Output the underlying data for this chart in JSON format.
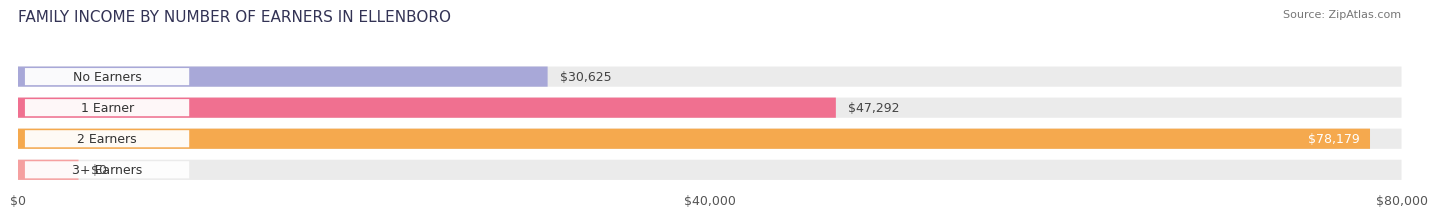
{
  "title": "FAMILY INCOME BY NUMBER OF EARNERS IN ELLENBORO",
  "source": "Source: ZipAtlas.com",
  "categories": [
    "No Earners",
    "1 Earner",
    "2 Earners",
    "3+ Earners"
  ],
  "values": [
    30625,
    47292,
    78179,
    0
  ],
  "bar_colors": [
    "#a8a8d8",
    "#f07090",
    "#f5a94e",
    "#f5a0a0"
  ],
  "value_labels": [
    "$30,625",
    "$47,292",
    "$78,179",
    "$0"
  ],
  "value_label_colors": [
    "#333333",
    "#333333",
    "#ffffff",
    "#333333"
  ],
  "xlim": [
    0,
    80000
  ],
  "xtick_labels": [
    "$0",
    "$40,000",
    "$80,000"
  ],
  "background_color": "#ffffff",
  "bar_background_color": "#ebebeb",
  "title_fontsize": 11,
  "tick_fontsize": 9,
  "bar_label_fontsize": 9,
  "value_label_fontsize": 9,
  "small_stub_value": 3500
}
